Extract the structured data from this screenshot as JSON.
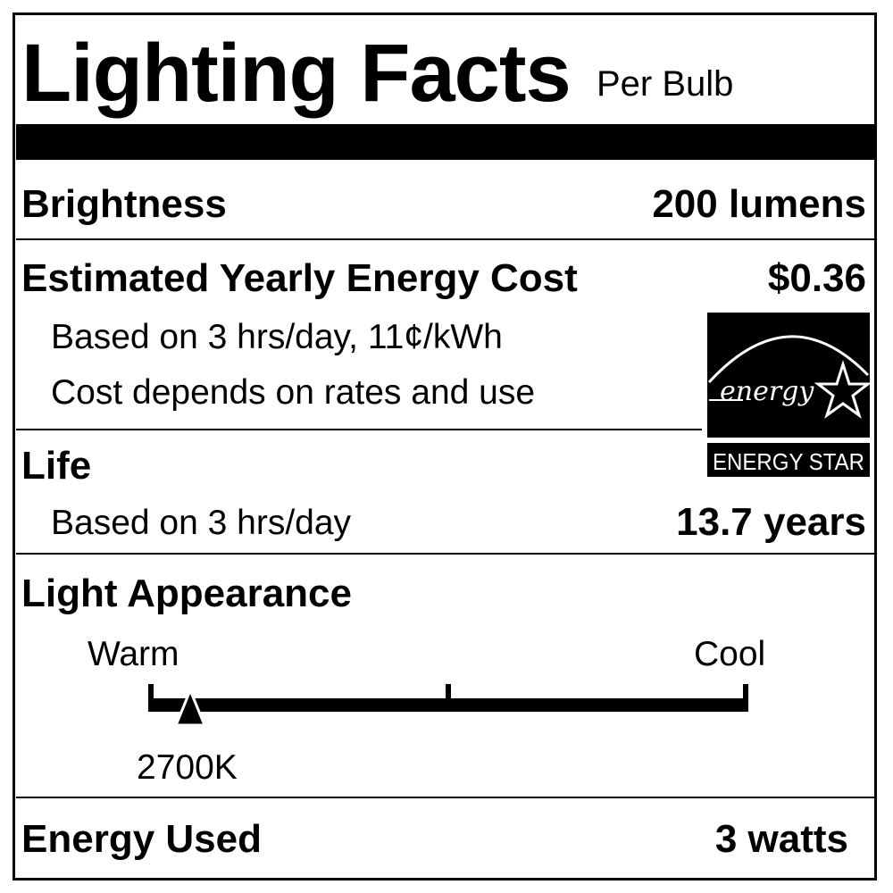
{
  "header": {
    "title": "Lighting Facts",
    "subtitle": "Per Bulb"
  },
  "brightness": {
    "label": "Brightness",
    "value": "200 lumens"
  },
  "energy_cost": {
    "label": "Estimated Yearly Energy Cost",
    "value": "$0.36",
    "note_1": "Based on 3 hrs/day, 11¢/kWh",
    "note_2": "Cost depends on rates and use"
  },
  "energy_star": {
    "logo_script": "energy",
    "label": "ENERGY STAR"
  },
  "life": {
    "label": "Life",
    "note": "Based on 3 hrs/day",
    "value": "13.7 years"
  },
  "light_appearance": {
    "label": "Light Appearance",
    "warm_label": "Warm",
    "cool_label": "Cool",
    "value": "2700K",
    "marker_level": 0.07
  },
  "energy_used": {
    "label": "Energy Used",
    "value": "3 watts"
  },
  "colors": {
    "ink": "#000000",
    "background": "#ffffff"
  }
}
